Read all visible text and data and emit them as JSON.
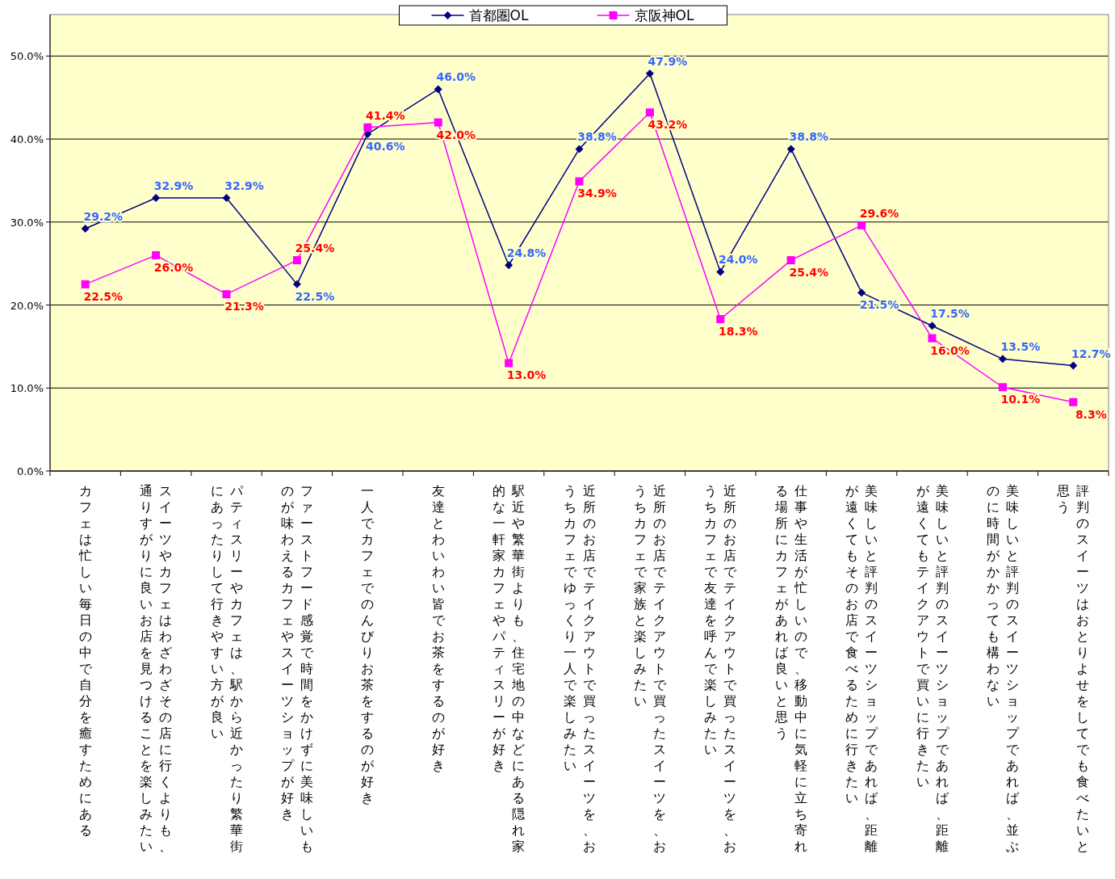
{
  "chart_data": {
    "type": "line",
    "categories": [
      "カフェは忙しい毎日の中で自分を癒すためにある",
      "スイーツやカフェはわざわざその店に行くよりも、通りすがりに良いお店を見つけることを楽しみたい",
      "パティスリーやカフェは、駅から近かったり繁華街にあったりして行きやすい方が良い",
      "ファーストフード感覚で時間をかけずに美味しいものが味わえるカフェやスイーツショップが好き",
      "一人でカフェでのんびりお茶をするのが好き",
      "友達とわいわい皆でお茶をするのが好き",
      "駅近や繁華街よりも、住宅地の中などにある隠れ家的な一軒家カフェやパティスリーが好き",
      "近所のお店でテイクアウトで買ったスイーツを、おうちカフェでゆっくり一人で楽しみたい",
      "近所のお店でテイクアウトで買ったスイーツを、おうちカフェで家族と楽しみたい",
      "近所のお店でテイクアウトで買ったスイーツを、おうちカフェで友達を呼んで楽しみたい",
      "仕事や生活が忙しいので、移動中に気軽に立ち寄れる場所にカフェがあれば良いと思う",
      "美味しいと評判のスイーツショップであれば、距離が遠くてもそのお店で食べるために行きたい",
      "美味しいと評判のスイーツショップであれば、距離が遠くてもテイクアウトで買いに行きたい",
      "美味しいと評判のスイーツショップであれば、並ぶのに時間がかかっても構わない",
      "評判のスイーツはおとりよせをしてでも食べたいと思う"
    ],
    "series": [
      {
        "name": "首都圏OL",
        "color": "#000080",
        "marker": "diamond",
        "values": [
          29.2,
          32.9,
          32.9,
          22.5,
          40.6,
          46.0,
          24.8,
          38.8,
          47.9,
          24.0,
          38.8,
          21.5,
          17.5,
          13.5,
          12.7
        ],
        "value_labels": [
          "29.2%",
          "32.9%",
          "32.9%",
          "22.5%",
          "40.6%",
          "46.0%",
          "24.8%",
          "38.8%",
          "47.9%",
          "24.0%",
          "38.8%",
          "21.5%",
          "17.5%",
          "13.5%",
          "12.7%"
        ]
      },
      {
        "name": "京阪神OL",
        "color": "#ff00ff",
        "marker": "square",
        "values": [
          22.5,
          26.0,
          21.3,
          25.4,
          41.4,
          42.0,
          13.0,
          34.9,
          43.2,
          18.3,
          25.4,
          29.6,
          16.0,
          10.1,
          8.3
        ],
        "value_labels": [
          "22.5%",
          "26.0%",
          "21.3%",
          "25.4%",
          "41.4%",
          "42.0%",
          "13.0%",
          "34.9%",
          "43.2%",
          "18.3%",
          "25.4%",
          "29.6%",
          "16.0%",
          "10.1%",
          "8.3%"
        ]
      }
    ],
    "ylim": [
      0,
      55
    ],
    "yticks": [
      {
        "value": 0,
        "label": "0.0%"
      },
      {
        "value": 10,
        "label": "10.0%"
      },
      {
        "value": 20,
        "label": "20.0%"
      },
      {
        "value": 30,
        "label": "30.0%"
      },
      {
        "value": 40,
        "label": "40.0%"
      },
      {
        "value": 50,
        "label": "50.0%"
      }
    ],
    "grid": "y",
    "legend": "top",
    "line_style": "solid"
  }
}
